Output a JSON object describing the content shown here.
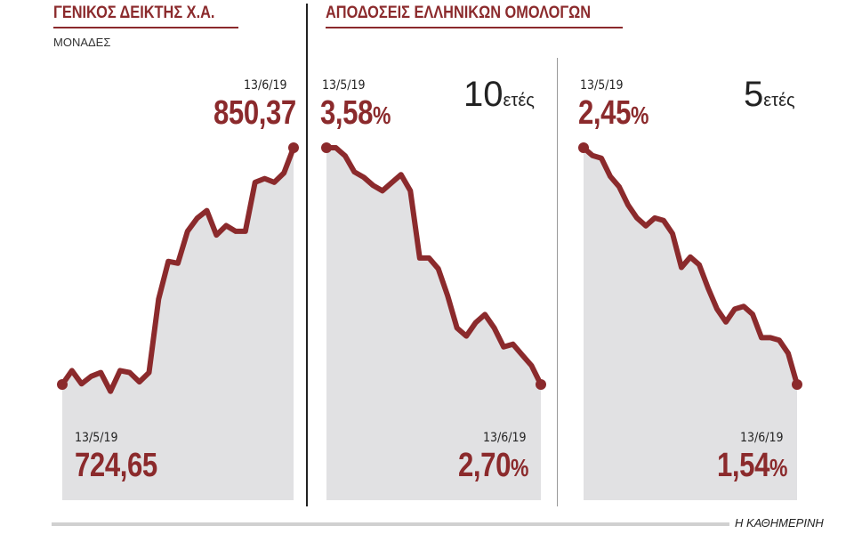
{
  "left": {
    "title": "ΓΕΝΙΚΟΣ ΔΕΙΚΤΗΣ Χ.Α.",
    "units": "ΜΟΝΑΔΕΣ",
    "end_date": "13/6/19",
    "end_value": "850,37",
    "start_date": "13/5/19",
    "start_value": "724,65"
  },
  "right": {
    "title": "ΑΠΟΔΟΣΕΙΣ ΕΛΛΗΝΙΚΩΝ ΟΜΟΛΟΓΩΝ",
    "ten": {
      "tenor_num": "10",
      "tenor_unit": "ετές",
      "start_date": "13/5/19",
      "start_value": "3,58",
      "end_date": "13/6/19",
      "end_value": "2,70",
      "pct": "%"
    },
    "five": {
      "tenor_num": "5",
      "tenor_unit": "ετές",
      "start_date": "13/5/19",
      "start_value": "2,45",
      "end_date": "13/6/19",
      "end_value": "1,54",
      "pct": "%"
    }
  },
  "footer": "Η ΚΑΘΗΜΕΡΙΝΗ",
  "colors": {
    "line": "#8b2a2c",
    "area": "#e1e1e3",
    "accent": "#8b2a2c"
  },
  "chart_data": [
    {
      "type": "area",
      "name": "index",
      "ylim": [
        715,
        855
      ],
      "values": [
        724.65,
        732,
        725,
        729,
        731,
        721,
        732,
        731,
        726,
        731,
        770,
        790,
        789,
        806,
        813,
        817,
        804,
        809,
        806,
        806,
        832,
        834,
        832,
        837,
        850.37
      ]
    },
    {
      "type": "area",
      "name": "10y",
      "ylim": [
        2.66,
        3.62
      ],
      "values": [
        3.58,
        3.58,
        3.55,
        3.49,
        3.47,
        3.44,
        3.42,
        3.45,
        3.48,
        3.42,
        3.17,
        3.17,
        3.13,
        3.03,
        2.91,
        2.88,
        2.93,
        2.96,
        2.91,
        2.84,
        2.85,
        2.81,
        2.77,
        2.7
      ]
    },
    {
      "type": "area",
      "name": "5y",
      "ylim": [
        1.5,
        2.5
      ],
      "values": [
        2.45,
        2.42,
        2.41,
        2.34,
        2.3,
        2.23,
        2.18,
        2.15,
        2.18,
        2.17,
        2.12,
        1.99,
        2.03,
        2.0,
        1.91,
        1.83,
        1.78,
        1.83,
        1.84,
        1.81,
        1.72,
        1.72,
        1.71,
        1.66,
        1.54
      ]
    }
  ]
}
